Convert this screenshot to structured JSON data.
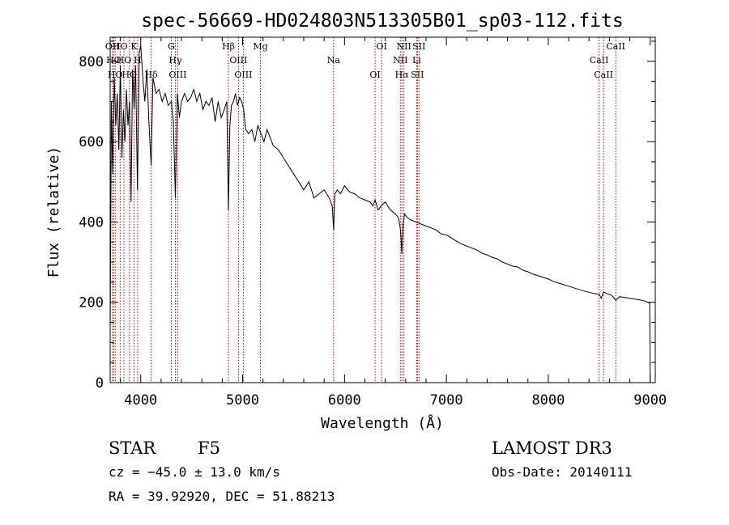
{
  "chart_data": {
    "type": "line",
    "title": "spec-56669-HD024803N513305B01_sp03-112.fits",
    "xlabel": "Wavelength (Å)",
    "ylabel": "Flux (relative)",
    "xlim": [
      3700,
      9050
    ],
    "ylim": [
      0,
      860
    ],
    "xticks": [
      4000,
      5000,
      6000,
      7000,
      8000,
      9000
    ],
    "yticks": [
      0,
      200,
      400,
      600,
      800
    ],
    "grid": false,
    "series": [
      {
        "name": "flux",
        "x": [
          3700,
          3712,
          3725,
          3740,
          3755,
          3770,
          3785,
          3800,
          3815,
          3830,
          3845,
          3860,
          3875,
          3890,
          3905,
          3920,
          3935,
          3950,
          3968,
          3985,
          4000,
          4020,
          4040,
          4060,
          4080,
          4102,
          4120,
          4150,
          4180,
          4210,
          4240,
          4270,
          4300,
          4320,
          4340,
          4360,
          4380,
          4400,
          4430,
          4460,
          4490,
          4520,
          4550,
          4580,
          4610,
          4640,
          4670,
          4700,
          4730,
          4760,
          4790,
          4820,
          4845,
          4861,
          4875,
          4890,
          4910,
          4930,
          4950,
          4970,
          4990,
          5010,
          5030,
          5060,
          5090,
          5120,
          5150,
          5180,
          5210,
          5240,
          5270,
          5300,
          5350,
          5400,
          5450,
          5500,
          5550,
          5600,
          5650,
          5700,
          5750,
          5800,
          5850,
          5880,
          5893,
          5905,
          5930,
          5960,
          6000,
          6050,
          6100,
          6150,
          6200,
          6250,
          6280,
          6300,
          6330,
          6360,
          6400,
          6450,
          6500,
          6530,
          6550,
          6563,
          6575,
          6590,
          6620,
          6650,
          6700,
          6750,
          6800,
          6850,
          6900,
          6950,
          7000,
          7050,
          7100,
          7150,
          7200,
          7250,
          7300,
          7350,
          7400,
          7450,
          7500,
          7550,
          7600,
          7650,
          7700,
          7750,
          7800,
          7850,
          7900,
          7950,
          8000,
          8050,
          8100,
          8150,
          8200,
          8250,
          8300,
          8350,
          8400,
          8450,
          8498,
          8520,
          8542,
          8580,
          8620,
          8662,
          8700,
          8750,
          8800,
          8850,
          8900,
          8950,
          8980,
          8995,
          9000
        ],
        "values": [
          120,
          700,
          520,
          760,
          640,
          720,
          580,
          790,
          560,
          680,
          600,
          730,
          640,
          700,
          450,
          780,
          680,
          790,
          480,
          820,
          840,
          760,
          700,
          780,
          650,
          540,
          760,
          720,
          730,
          700,
          720,
          690,
          700,
          650,
          460,
          720,
          660,
          700,
          720,
          700,
          710,
          730,
          700,
          720,
          680,
          700,
          690,
          710,
          650,
          700,
          660,
          680,
          700,
          430,
          640,
          690,
          700,
          720,
          690,
          710,
          700,
          680,
          630,
          620,
          630,
          600,
          640,
          620,
          600,
          630,
          610,
          590,
          580,
          560,
          540,
          520,
          500,
          480,
          500,
          460,
          470,
          480,
          460,
          440,
          380,
          470,
          480,
          470,
          490,
          475,
          470,
          460,
          455,
          450,
          440,
          455,
          430,
          440,
          450,
          430,
          420,
          410,
          380,
          320,
          395,
          420,
          410,
          405,
          400,
          395,
          390,
          385,
          380,
          370,
          368,
          360,
          352,
          345,
          340,
          335,
          330,
          322,
          318,
          312,
          308,
          300,
          295,
          290,
          288,
          280,
          276,
          270,
          266,
          262,
          258,
          252,
          248,
          244,
          240,
          236,
          232,
          228,
          225,
          222,
          220,
          210,
          226,
          221,
          218,
          205,
          214,
          212,
          210,
          208,
          206,
          203,
          200,
          198,
          0
        ]
      }
    ],
    "lines": [
      {
        "wl": 3722,
        "label": "OII"
      },
      {
        "wl": 3735,
        "label": "HO"
      },
      {
        "wl": 3750,
        "label": "HO"
      },
      {
        "wl": 3798,
        "label": "HO"
      },
      {
        "wl": 3835,
        "label": "HO"
      },
      {
        "wl": 3889,
        "label": "HO"
      },
      {
        "wl": 3934,
        "label": "K"
      },
      {
        "wl": 3970,
        "label": "H"
      },
      {
        "wl": 4102,
        "label": "Hδ"
      },
      {
        "wl": 4300,
        "label": "G"
      },
      {
        "wl": 4340,
        "label": "Hγ"
      },
      {
        "wl": 4363,
        "label": "OIII"
      },
      {
        "wl": 4861,
        "label": "Hβ"
      },
      {
        "wl": 4959,
        "label": "OIII"
      },
      {
        "wl": 5007,
        "label": "OIII"
      },
      {
        "wl": 5175,
        "label": "Mg"
      },
      {
        "wl": 5893,
        "label": "Na"
      },
      {
        "wl": 6300,
        "label": "OI"
      },
      {
        "wl": 6364,
        "label": "OI"
      },
      {
        "wl": 6548,
        "label": "NII"
      },
      {
        "wl": 6563,
        "label": "Hα"
      },
      {
        "wl": 6583,
        "label": "NII"
      },
      {
        "wl": 6708,
        "label": "Li"
      },
      {
        "wl": 6716,
        "label": "SII"
      },
      {
        "wl": 6731,
        "label": "SII"
      },
      {
        "wl": 8498,
        "label": "CaII"
      },
      {
        "wl": 8542,
        "label": "CaII"
      },
      {
        "wl": 8662,
        "label": "CaII"
      }
    ],
    "line_color": "#c00000"
  },
  "info": {
    "class_label": "STAR",
    "subclass": "F5",
    "survey": "LAMOST DR3",
    "cz": "cz = −45.0 ± 13.0 km/s",
    "obs_date": "Obs-Date: 20140111",
    "coords": "RA =  39.92920, DEC =  51.88213"
  }
}
